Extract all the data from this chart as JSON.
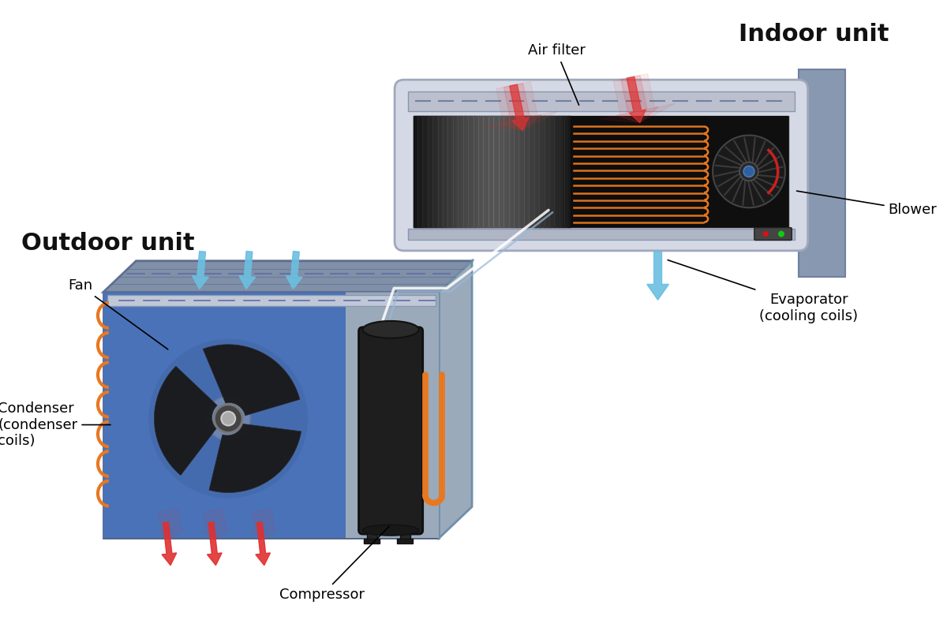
{
  "background_color": "#ffffff",
  "title_indoor": "Indoor unit",
  "title_outdoor": "Outdoor unit",
  "label_air_filter": "Air filter",
  "label_blower": "Blower",
  "label_evaporator": "Evaporator\n(cooling coils)",
  "label_fan": "Fan",
  "label_condenser": "Condenser\n(condenser\ncoils)",
  "label_compressor": "Compressor",
  "color_hot_arrow": "#e03030",
  "color_cool_arrow": "#6bbfe0",
  "color_coil": "#e87820",
  "color_indoor_body": "#d5d9e5",
  "color_indoor_interior": "#181818",
  "color_wall_mount": "#8898b0",
  "color_outdoor_front": "#7088a8",
  "color_outdoor_top": "#8898b8",
  "color_outdoor_right": "#9aabbb",
  "color_blue_panel": "#4a6eb0",
  "color_gray_section": "#9dafc4",
  "color_fan_blade": "#181818",
  "color_compressor": "#222222",
  "title_fontsize": 22,
  "label_fontsize": 13
}
